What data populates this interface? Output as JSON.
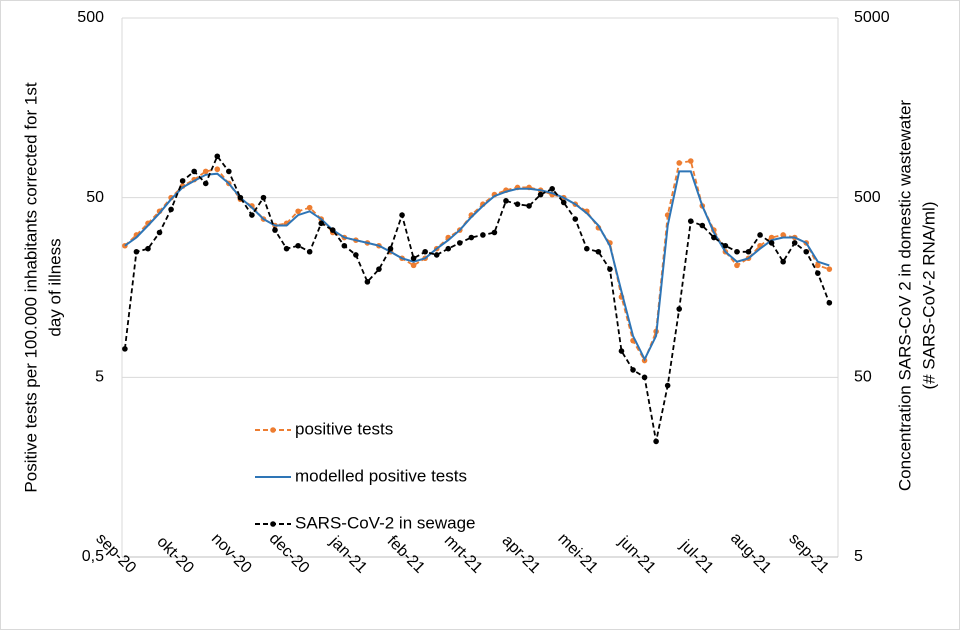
{
  "chart_data": {
    "type": "line",
    "ylabel": [
      "Positive tests per 100.000 inhabitants corrected for 1st",
      "day of illness"
    ],
    "y2label": [
      "Concentration SARS-CoV 2 in domestic wastewater",
      "(# SARS-CoV-2 RNA/ml)"
    ],
    "log_scale": true,
    "grid": true,
    "legend": "center-left",
    "xlim": [
      -0.05,
      12.35
    ],
    "xticks": [
      {
        "value": 0,
        "label": "sep-20"
      },
      {
        "value": 1,
        "label": "okt-20"
      },
      {
        "value": 2,
        "label": "nov-20"
      },
      {
        "value": 3,
        "label": "dec-20"
      },
      {
        "value": 4,
        "label": "jan-21"
      },
      {
        "value": 5,
        "label": "feb-21"
      },
      {
        "value": 6,
        "label": "mrt-21"
      },
      {
        "value": 7,
        "label": "apr-21"
      },
      {
        "value": 8,
        "label": "mei-21"
      },
      {
        "value": 9,
        "label": "jun-21"
      },
      {
        "value": 10,
        "label": "jul-21"
      },
      {
        "value": 11,
        "label": "aug-21"
      },
      {
        "value": 12,
        "label": "sep-21"
      }
    ],
    "ylim": [
      0.5,
      500
    ],
    "yticks": [
      {
        "value": 0.5,
        "label": "0,5"
      },
      5,
      50,
      500
    ],
    "y2lim": [
      5,
      5000
    ],
    "y2ticks": [
      5,
      50,
      500,
      5000
    ],
    "x": [
      0,
      0.2,
      0.4,
      0.6,
      0.8,
      1,
      1.2,
      1.4,
      1.6,
      1.8,
      2,
      2.2,
      2.4,
      2.6,
      2.8,
      3,
      3.2,
      3.4,
      3.6,
      3.8,
      4,
      4.2,
      4.4,
      4.6,
      4.8,
      5,
      5.2,
      5.4,
      5.6,
      5.8,
      6,
      6.2,
      6.4,
      6.6,
      6.8,
      7,
      7.2,
      7.4,
      7.6,
      7.8,
      8,
      8.2,
      8.4,
      8.6,
      8.8,
      9,
      9.2,
      9.4,
      9.6,
      9.8,
      10,
      10.2,
      10.4,
      10.6,
      10.8,
      11,
      11.2,
      11.4,
      11.6,
      11.8,
      12,
      12.2
    ],
    "series": [
      {
        "name": "positive tests",
        "color": "#ed7d31",
        "dash": true,
        "markers": true,
        "values": [
          27,
          31,
          36,
          42,
          50,
          58,
          63,
          70,
          72,
          60,
          49,
          45,
          38,
          35,
          36,
          42,
          44,
          38,
          32,
          30,
          29,
          28,
          27,
          25,
          23,
          21,
          23,
          26,
          30,
          33,
          40,
          46,
          52,
          55,
          57,
          57,
          55,
          52,
          50,
          46,
          42,
          34,
          28,
          14,
          8,
          6.2,
          9,
          40,
          78,
          80,
          45,
          33,
          25,
          21,
          23,
          27,
          30,
          31,
          30,
          28,
          21,
          20
        ]
      },
      {
        "name": "modelled positive tests",
        "color": "#2e75b6",
        "dash": false,
        "markers": false,
        "values": [
          27,
          30,
          35,
          41,
          49,
          57,
          62,
          67,
          68,
          60,
          50,
          44,
          38,
          35,
          35,
          40,
          42,
          38,
          33,
          30,
          29,
          28,
          27,
          25,
          23,
          22,
          23,
          26,
          29,
          33,
          39,
          45,
          51,
          54,
          56,
          56,
          55,
          53,
          50,
          46,
          41,
          35,
          27,
          15,
          8.5,
          6.3,
          8.5,
          35,
          70,
          70,
          45,
          32,
          25,
          22,
          23,
          26,
          29,
          30,
          30,
          28,
          22,
          21
        ]
      },
      {
        "name": "SARS-CoV-2 in sewage",
        "color": "#000000",
        "dash": true,
        "markers": true,
        "axis": "y2",
        "values": [
          72,
          250,
          260,
          320,
          430,
          620,
          700,
          600,
          850,
          700,
          500,
          400,
          500,
          330,
          260,
          270,
          250,
          360,
          330,
          270,
          240,
          170,
          200,
          260,
          400,
          230,
          250,
          240,
          260,
          280,
          300,
          310,
          320,
          480,
          460,
          450,
          520,
          560,
          470,
          380,
          260,
          250,
          200,
          70,
          55,
          50,
          22,
          45,
          120,
          370,
          350,
          300,
          270,
          250,
          250,
          310,
          280,
          220,
          280,
          250,
          190,
          130
        ]
      }
    ]
  }
}
